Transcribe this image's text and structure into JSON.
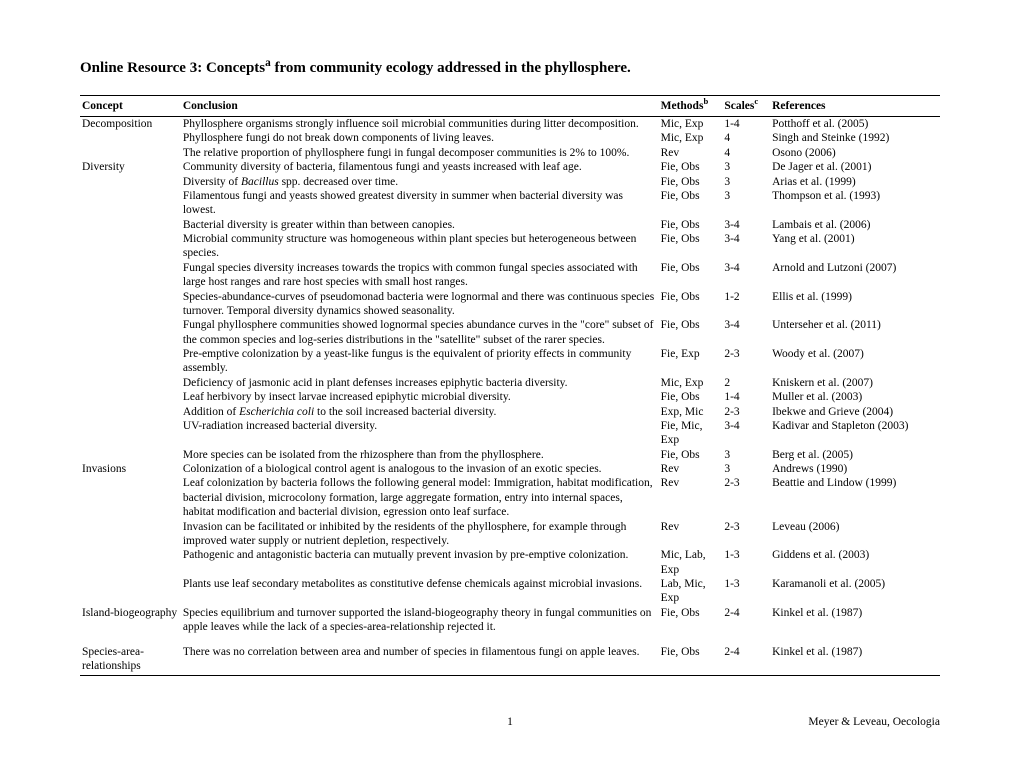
{
  "title_pre": "Online Resource 3: Concepts",
  "title_sup": "a",
  "title_post": " from community ecology addressed in the phyllosphere.",
  "headers": {
    "concept": "Concept",
    "conclusion": "Conclusion",
    "methods_pre": "Methods",
    "methods_sup": "b",
    "scales_pre": "Scales",
    "scales_sup": "c",
    "references": "References"
  },
  "rows": [
    {
      "concept": "Decomposition",
      "conclusion": "Phyllosphere organisms strongly influence soil microbial communities during litter decomposition.",
      "methods": "Mic, Exp",
      "scales": "1-4",
      "refs": "Potthoff et al. (2005)"
    },
    {
      "concept": "",
      "conclusion": "Phyllosphere fungi do not break down components of living leaves.",
      "methods": "Mic, Exp",
      "scales": "4",
      "refs": "Singh and Steinke (1992)"
    },
    {
      "concept": "",
      "conclusion": "The relative proportion of phyllosphere fungi in fungal decomposer communities is 2% to 100%.",
      "methods": "Rev",
      "scales": "4",
      "refs": "Osono (2006)"
    },
    {
      "concept": "Diversity",
      "conclusion": "Community diversity of bacteria, filamentous fungi and yeasts increased with leaf age.",
      "methods": "Fie, Obs",
      "scales": "3",
      "refs": "De Jager et al. (2001)"
    },
    {
      "concept": "",
      "conclusion_html": "Diversity of <em>Bacillus</em> spp. decreased over time.",
      "methods": "Fie, Obs",
      "scales": "3",
      "refs": "Arias et al. (1999)"
    },
    {
      "concept": "",
      "conclusion": "Filamentous fungi and yeasts showed greatest diversity in summer when bacterial diversity was lowest.",
      "methods": "Fie, Obs",
      "scales": "3",
      "refs": "Thompson et al. (1993)"
    },
    {
      "concept": "",
      "conclusion": "Bacterial diversity is greater within than between canopies.",
      "methods": "Fie, Obs",
      "scales": "3-4",
      "refs": "Lambais et al. (2006)"
    },
    {
      "concept": "",
      "conclusion": "Microbial community structure was homogeneous within plant species but heterogeneous between species.",
      "methods": "Fie, Obs",
      "scales": "3-4",
      "refs": "Yang et al. (2001)"
    },
    {
      "concept": "",
      "conclusion": "Fungal species diversity increases towards the tropics with common fungal species associated with large host ranges and rare host species with small host ranges.",
      "methods": "Fie, Obs",
      "scales": "3-4",
      "refs": "Arnold and Lutzoni (2007)"
    },
    {
      "concept": "",
      "conclusion": "Species-abundance-curves of pseudomonad bacteria were lognormal and there was continuous species turnover. Temporal diversity dynamics showed seasonality.",
      "methods": "Fie, Obs",
      "scales": "1-2",
      "refs": "Ellis et al. (1999)"
    },
    {
      "concept": "",
      "conclusion": "Fungal phyllosphere communities showed lognormal species abundance curves in the \"core\" subset of the common species and log-series distributions in the \"satellite\" subset of the rarer species.",
      "methods": "Fie, Obs",
      "scales": "3-4",
      "refs": "Unterseher et al. (2011)"
    },
    {
      "concept": "",
      "conclusion": "Pre-emptive colonization by a yeast-like fungus is the equivalent of priority effects in community assembly.",
      "methods": "Fie, Exp",
      "scales": "2-3",
      "refs": "Woody et al. (2007)"
    },
    {
      "concept": "",
      "conclusion": "Deficiency of jasmonic acid in plant defenses increases epiphytic bacteria diversity.",
      "methods": "Mic, Exp",
      "scales": "2",
      "refs": "Kniskern et al. (2007)"
    },
    {
      "concept": "",
      "conclusion": "Leaf herbivory by insect larvae increased epiphytic microbial diversity.",
      "methods": "Fie, Obs",
      "scales": "1-4",
      "refs": "Muller et al. (2003)"
    },
    {
      "concept": "",
      "conclusion_html": "Addition of <em>Escherichia coli</em> to the soil increased bacterial diversity.",
      "methods": "Exp, Mic",
      "scales": "2-3",
      "refs": "Ibekwe and Grieve (2004)"
    },
    {
      "concept": "",
      "conclusion": "UV-radiation increased bacterial diversity.",
      "methods": "Fie, Mic, Exp",
      "scales": "3-4",
      "refs": "Kadivar and Stapleton (2003)"
    },
    {
      "concept": "",
      "conclusion": "More species can be isolated from the rhizosphere than from the phyllosphere.",
      "methods": "Fie, Obs",
      "scales": "3",
      "refs": "Berg et al. (2005)"
    },
    {
      "concept": "Invasions",
      "conclusion": "Colonization of a biological control agent is analogous to the invasion of an exotic species.",
      "methods": "Rev",
      "scales": "3",
      "refs": "Andrews (1990)"
    },
    {
      "concept": "",
      "conclusion": "Leaf colonization by bacteria follows the following general model: Immigration, habitat modification, bacterial division, microcolony formation, large aggregate formation, entry into internal spaces, habitat modification and bacterial division, egression onto leaf surface.",
      "methods": "Rev",
      "scales": "2-3",
      "refs": " Beattie and Lindow (1999)"
    },
    {
      "concept": "",
      "conclusion": "Invasion can be facilitated or inhibited by the residents of the phyllosphere, for example through improved water supply or nutrient depletion, respectively.",
      "methods": "Rev",
      "scales": "2-3",
      "refs": "Leveau (2006)"
    },
    {
      "concept": "",
      "conclusion": "Pathogenic and antagonistic bacteria can mutually prevent invasion by pre-emptive colonization.",
      "methods": "Mic, Lab, Exp",
      "scales": "1-3",
      "refs": "Giddens et al. (2003)"
    },
    {
      "concept": "",
      "conclusion": "Plants use leaf secondary metabolites as constitutive defense chemicals against microbial invasions.",
      "methods": "Lab, Mic, Exp",
      "scales": "1-3",
      "refs": "Karamanoli et al. (2005)"
    },
    {
      "concept": "Island-biogeography",
      "conclusion": "Species equilibrium and turnover supported the island-biogeography theory in fungal communities on apple leaves while the lack of a species-area-relationship rejected it.",
      "methods": "Fie, Obs",
      "scales": "2-4",
      "refs": "Kinkel et al. (1987)"
    },
    {
      "spacer": true
    },
    {
      "concept": "Species-area-relationships",
      "conclusion": "There was no correlation between area and number of species in filamentous fungi on apple leaves.",
      "methods": "Fie, Obs",
      "scales": "2-4",
      "refs": "Kinkel et al. (1987)"
    }
  ],
  "footer": {
    "page": "1",
    "right": "Meyer & Leveau, Oecologia"
  }
}
